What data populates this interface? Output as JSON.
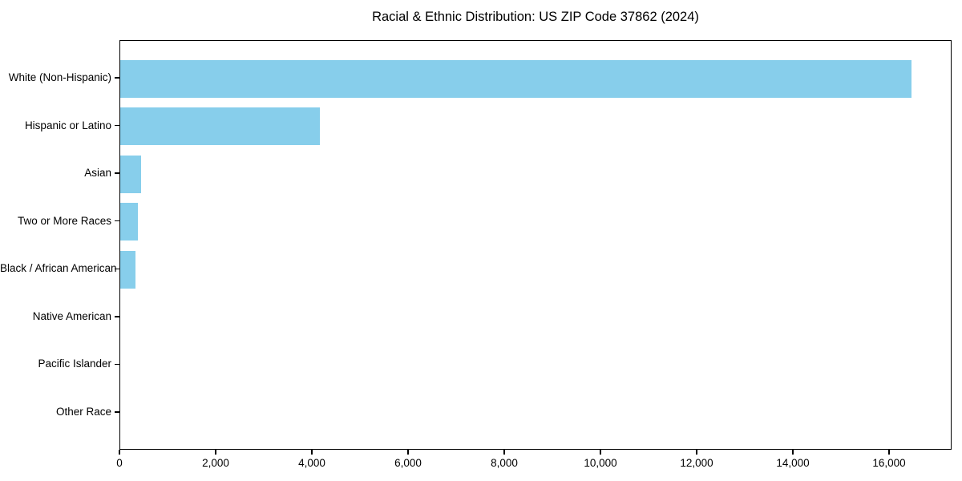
{
  "chart_data": {
    "type": "bar",
    "orientation": "horizontal",
    "title": "Racial & Ethnic Distribution: US ZIP Code 37862 (2024)",
    "categories": [
      "White (Non-Hispanic)",
      "Hispanic or Latino",
      "Asian",
      "Two or More Races",
      "Black / African American",
      "Native American",
      "Pacific Islander",
      "Other Race"
    ],
    "values": [
      16450,
      4150,
      430,
      370,
      310,
      0,
      0,
      0
    ],
    "bar_color": "#87CEEB",
    "axis_color": "#000000",
    "text_color": "#000000",
    "xlabel": "",
    "ylabel": "",
    "xlim": [
      0,
      17300
    ],
    "x_ticks": [
      0,
      2000,
      4000,
      6000,
      8000,
      10000,
      12000,
      14000,
      16000
    ],
    "x_tick_labels": [
      "0",
      "2,000",
      "4,000",
      "6,000",
      "8,000",
      "10,000",
      "12,000",
      "14,000",
      "16,000"
    ],
    "grid": false,
    "legend": "none",
    "frame": true
  }
}
